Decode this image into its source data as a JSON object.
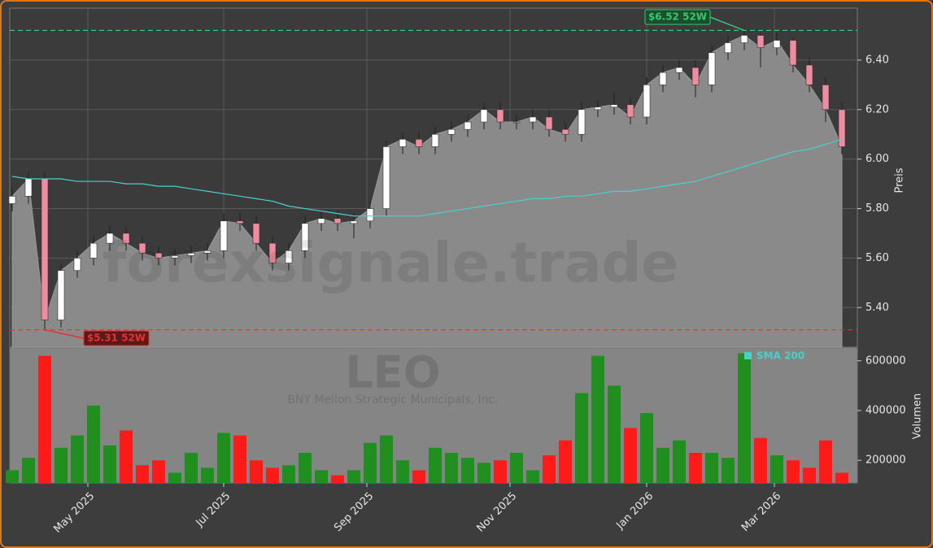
{
  "chart_data": {
    "type": "candlestick",
    "title": "LEO",
    "subtitle": "BNY Mellon Strategic Municipals, Inc.",
    "watermark": "forexsignale.trade",
    "x": [
      0,
      1,
      2,
      3,
      4,
      5,
      6,
      7,
      8,
      9,
      10,
      11,
      12,
      13,
      14,
      15,
      16,
      17,
      18,
      19,
      20,
      21,
      22,
      23,
      24,
      25,
      26,
      27,
      28,
      29,
      30,
      31,
      32,
      33,
      34,
      35,
      36,
      37,
      38,
      39,
      40,
      41,
      42,
      43,
      44,
      45,
      46,
      47,
      48,
      49,
      50,
      51
    ],
    "xlim": [
      -0.15,
      51.95
    ],
    "xticks": [
      {
        "value": 4.65,
        "label": "May 2025"
      },
      {
        "value": 13.0,
        "label": "Jul 2025"
      },
      {
        "value": 21.8,
        "label": "Sep 2025"
      },
      {
        "value": 30.6,
        "label": "Nov 2025"
      },
      {
        "value": 39.0,
        "label": "Jan 2026"
      },
      {
        "value": 46.85,
        "label": "Mar 2026"
      }
    ],
    "open": [
      5.82,
      5.85,
      5.92,
      5.35,
      5.55,
      5.6,
      5.66,
      5.7,
      5.66,
      5.62,
      5.6,
      5.61,
      5.62,
      5.63,
      5.75,
      5.74,
      5.66,
      5.58,
      5.63,
      5.74,
      5.76,
      5.74,
      5.75,
      5.8,
      6.05,
      6.08,
      6.05,
      6.1,
      6.12,
      6.15,
      6.2,
      6.15,
      6.15,
      6.17,
      6.12,
      6.1,
      6.2,
      6.21,
      6.22,
      6.17,
      6.3,
      6.35,
      6.37,
      6.3,
      6.43,
      6.47,
      6.5,
      6.45,
      6.48,
      6.38,
      6.3,
      6.2
    ],
    "high": [
      5.88,
      5.95,
      5.95,
      5.58,
      5.63,
      5.69,
      5.73,
      5.73,
      5.69,
      5.65,
      5.64,
      5.65,
      5.66,
      5.78,
      5.78,
      5.77,
      5.69,
      5.66,
      5.77,
      5.79,
      5.79,
      5.78,
      5.83,
      6.08,
      6.11,
      6.11,
      6.13,
      6.15,
      6.18,
      6.23,
      6.23,
      6.18,
      6.2,
      6.2,
      6.15,
      6.23,
      6.24,
      6.27,
      6.25,
      6.33,
      6.38,
      6.4,
      6.4,
      6.46,
      6.5,
      6.52,
      6.51,
      6.51,
      6.49,
      6.41,
      6.33,
      6.23
    ],
    "low": [
      5.79,
      5.82,
      5.31,
      5.32,
      5.52,
      5.57,
      5.63,
      5.63,
      5.59,
      5.57,
      5.57,
      5.58,
      5.59,
      5.6,
      5.71,
      5.63,
      5.55,
      5.55,
      5.6,
      5.71,
      5.71,
      5.68,
      5.72,
      5.77,
      6.02,
      6.02,
      6.02,
      6.07,
      6.09,
      6.12,
      6.12,
      6.12,
      6.12,
      6.09,
      6.07,
      6.07,
      6.17,
      6.18,
      6.14,
      6.14,
      6.27,
      6.32,
      6.25,
      6.27,
      6.4,
      6.44,
      6.37,
      6.42,
      6.35,
      6.27,
      6.15,
      6.02
    ],
    "close": [
      5.85,
      5.92,
      5.35,
      5.55,
      5.6,
      5.66,
      5.7,
      5.66,
      5.62,
      5.6,
      5.61,
      5.62,
      5.63,
      5.75,
      5.74,
      5.66,
      5.58,
      5.63,
      5.74,
      5.76,
      5.74,
      5.75,
      5.8,
      6.05,
      6.08,
      6.05,
      6.1,
      6.12,
      6.15,
      6.2,
      6.15,
      6.15,
      6.17,
      6.12,
      6.1,
      6.2,
      6.21,
      6.22,
      6.17,
      6.3,
      6.35,
      6.37,
      6.3,
      6.43,
      6.47,
      6.5,
      6.45,
      6.48,
      6.38,
      6.3,
      6.2,
      6.05
    ],
    "up_color": "#ffffff",
    "down_color": "#f08ca0",
    "area_color": "#8a8a8a",
    "ylim": [
      5.24,
      6.61
    ],
    "yticks": [
      {
        "value": 5.4,
        "label": "5.40"
      },
      {
        "value": 5.6,
        "label": "5.60"
      },
      {
        "value": 5.8,
        "label": "5.80"
      },
      {
        "value": 6.0,
        "label": "6.00"
      },
      {
        "value": 6.2,
        "label": "6.20"
      },
      {
        "value": 6.4,
        "label": "6.40"
      }
    ],
    "ylabel": "Preis",
    "grid": true,
    "series": [
      {
        "name": "SMA 200",
        "color": "#48d1cc",
        "values": [
          5.93,
          5.92,
          5.92,
          5.92,
          5.91,
          5.91,
          5.91,
          5.9,
          5.9,
          5.89,
          5.89,
          5.88,
          5.87,
          5.86,
          5.85,
          5.84,
          5.83,
          5.81,
          5.8,
          5.79,
          5.78,
          5.77,
          5.77,
          5.77,
          5.77,
          5.77,
          5.78,
          5.79,
          5.8,
          5.81,
          5.82,
          5.83,
          5.84,
          5.84,
          5.85,
          5.85,
          5.86,
          5.87,
          5.87,
          5.88,
          5.89,
          5.9,
          5.91,
          5.93,
          5.95,
          5.97,
          5.99,
          6.01,
          6.03,
          6.04,
          6.06,
          6.08
        ]
      }
    ],
    "hlines": [
      {
        "value": 6.52,
        "label": "$6.52 52W",
        "color": "#2ecc71",
        "at": 45
      },
      {
        "value": 5.31,
        "label": "$5.31 52W",
        "color": "#e83030",
        "at": 2
      }
    ],
    "volume": {
      "values": [
        160000,
        210000,
        620000,
        250000,
        300000,
        420000,
        260000,
        320000,
        180000,
        200000,
        150000,
        230000,
        170000,
        310000,
        300000,
        200000,
        170000,
        180000,
        230000,
        160000,
        140000,
        160000,
        270000,
        300000,
        200000,
        160000,
        250000,
        230000,
        210000,
        190000,
        200000,
        230000,
        160000,
        220000,
        280000,
        470000,
        620000,
        500000,
        330000,
        390000,
        250000,
        280000,
        230000,
        230000,
        210000,
        630000,
        290000,
        220000,
        200000,
        170000,
        280000,
        150000
      ],
      "up_color": "#1f8f1f",
      "down_color": "#ff1a1a",
      "ylim": [
        109000,
        651500
      ],
      "yticks": [
        200000,
        400000,
        600000
      ],
      "ylabel": "Volumen"
    }
  }
}
